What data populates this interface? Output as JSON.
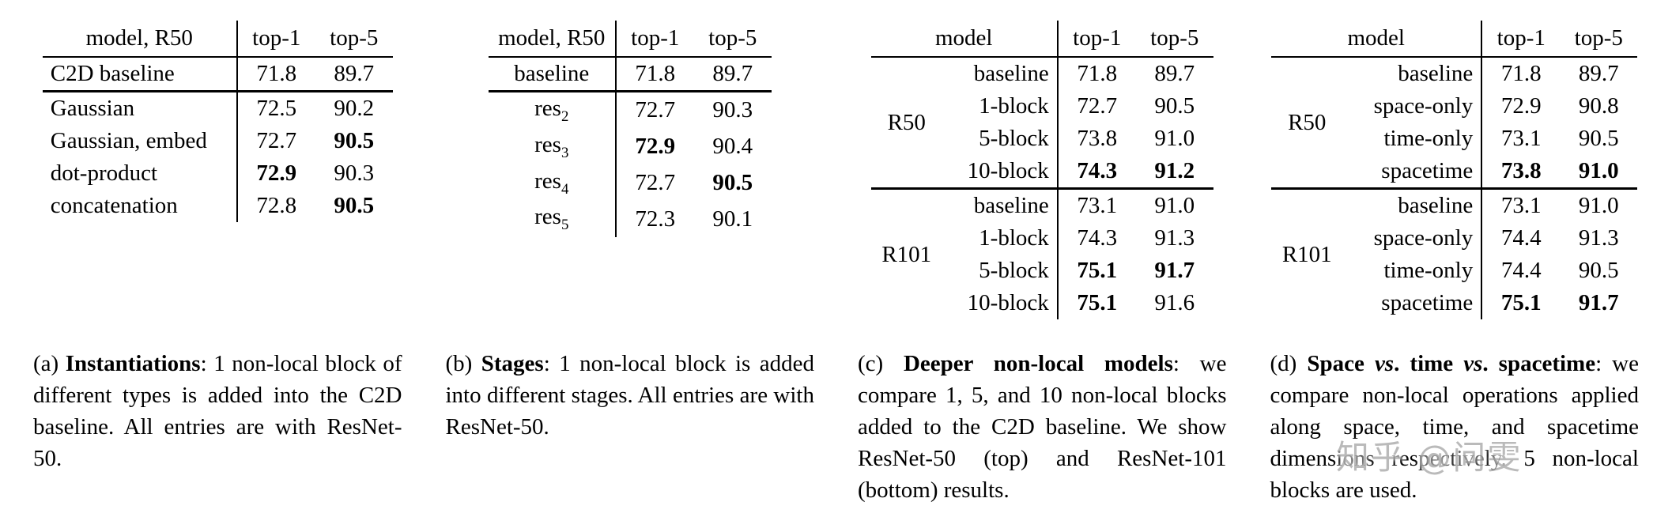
{
  "watermark": "知乎 @问雯",
  "panels": [
    {
      "id": "a",
      "grouped": false,
      "header": {
        "model": "model, R50",
        "top1": "top-1",
        "top5": "top-5"
      },
      "rows": [
        {
          "model": "C2D baseline",
          "top1": "71.8",
          "top5": "89.7",
          "bold": [],
          "section_end": true
        },
        {
          "model": "Gaussian",
          "top1": "72.5",
          "top5": "90.2",
          "bold": []
        },
        {
          "model": "Gaussian, embed",
          "top1": "72.7",
          "top5": "90.5",
          "bold": [
            "top5"
          ]
        },
        {
          "model": "dot-product",
          "top1": "72.9",
          "top5": "90.3",
          "bold": [
            "top1"
          ]
        },
        {
          "model": "concatenation",
          "top1": "72.8",
          "top5": "90.5",
          "bold": [
            "top5"
          ]
        }
      ],
      "caption": [
        {
          "t": "(a) ",
          "s": "n"
        },
        {
          "t": "Instantiations",
          "s": "b"
        },
        {
          "t": ": 1 non-local block of different types is added into the C2D baseline. All entries are with ResNet-50.",
          "s": "n"
        }
      ]
    },
    {
      "id": "b",
      "grouped": false,
      "header": {
        "model": "model, R50",
        "top1": "top-1",
        "top5": "top-5"
      },
      "rows": [
        {
          "model": "baseline",
          "top1": "71.8",
          "top5": "89.7",
          "bold": [],
          "section_end": true
        },
        {
          "model": "res",
          "model_sub": "2",
          "top1": "72.7",
          "top5": "90.3",
          "bold": []
        },
        {
          "model": "res",
          "model_sub": "3",
          "top1": "72.9",
          "top5": "90.4",
          "bold": [
            "top1"
          ]
        },
        {
          "model": "res",
          "model_sub": "4",
          "top1": "72.7",
          "top5": "90.5",
          "bold": [
            "top5"
          ]
        },
        {
          "model": "res",
          "model_sub": "5",
          "top1": "72.3",
          "top5": "90.1",
          "bold": []
        }
      ],
      "caption": [
        {
          "t": "(b) ",
          "s": "n"
        },
        {
          "t": "Stages",
          "s": "b"
        },
        {
          "t": ": 1 non-local block is added into different stages. All entries are with ResNet-50.",
          "s": "n"
        }
      ]
    },
    {
      "id": "c",
      "grouped": true,
      "header": {
        "model": "model",
        "top1": "top-1",
        "top5": "top-5"
      },
      "rows": [
        {
          "group": "R50",
          "group_span": 4,
          "model": "baseline",
          "top1": "71.8",
          "top5": "89.7",
          "bold": []
        },
        {
          "model": "1-block",
          "top1": "72.7",
          "top5": "90.5",
          "bold": []
        },
        {
          "model": "5-block",
          "top1": "73.8",
          "top5": "91.0",
          "bold": []
        },
        {
          "model": "10-block",
          "top1": "74.3",
          "top5": "91.2",
          "bold": [
            "top1",
            "top5"
          ],
          "section_end": true
        },
        {
          "group": "R101",
          "group_span": 4,
          "model": "baseline",
          "top1": "73.1",
          "top5": "91.0",
          "bold": []
        },
        {
          "model": "1-block",
          "top1": "74.3",
          "top5": "91.3",
          "bold": []
        },
        {
          "model": "5-block",
          "top1": "75.1",
          "top5": "91.7",
          "bold": [
            "top1",
            "top5"
          ]
        },
        {
          "model": "10-block",
          "top1": "75.1",
          "top5": "91.6",
          "bold": [
            "top1"
          ]
        }
      ],
      "caption": [
        {
          "t": "(c) ",
          "s": "n"
        },
        {
          "t": "Deeper non-local models",
          "s": "b"
        },
        {
          "t": ": we compare 1, 5, and 10 non-local blocks added to the C2D baseline. We show ResNet-50 (top) and ResNet-101 (bottom) results.",
          "s": "n"
        }
      ]
    },
    {
      "id": "d",
      "grouped": true,
      "header": {
        "model": "model",
        "top1": "top-1",
        "top5": "top-5"
      },
      "rows": [
        {
          "group": "R50",
          "group_span": 4,
          "model": "baseline",
          "top1": "71.8",
          "top5": "89.7",
          "bold": []
        },
        {
          "model": "space-only",
          "top1": "72.9",
          "top5": "90.8",
          "bold": []
        },
        {
          "model": "time-only",
          "top1": "73.1",
          "top5": "90.5",
          "bold": []
        },
        {
          "model": "spacetime",
          "top1": "73.8",
          "top5": "91.0",
          "bold": [
            "top1",
            "top5"
          ],
          "section_end": true
        },
        {
          "group": "R101",
          "group_span": 4,
          "model": "baseline",
          "top1": "73.1",
          "top5": "91.0",
          "bold": []
        },
        {
          "model": "space-only",
          "top1": "74.4",
          "top5": "91.3",
          "bold": []
        },
        {
          "model": "time-only",
          "top1": "74.4",
          "top5": "90.5",
          "bold": []
        },
        {
          "model": "spacetime",
          "top1": "75.1",
          "top5": "91.7",
          "bold": [
            "top1",
            "top5"
          ]
        }
      ],
      "caption": [
        {
          "t": "(d) ",
          "s": "n"
        },
        {
          "t": "Space ",
          "s": "b"
        },
        {
          "t": "vs",
          "s": "bi"
        },
        {
          "t": ". time ",
          "s": "b"
        },
        {
          "t": "vs",
          "s": "bi"
        },
        {
          "t": ". spacetime",
          "s": "b"
        },
        {
          "t": ": we compare non-local operations applied along space, time, and spacetime dimensions respectively. 5 non-local blocks are used.",
          "s": "n"
        }
      ]
    }
  ]
}
